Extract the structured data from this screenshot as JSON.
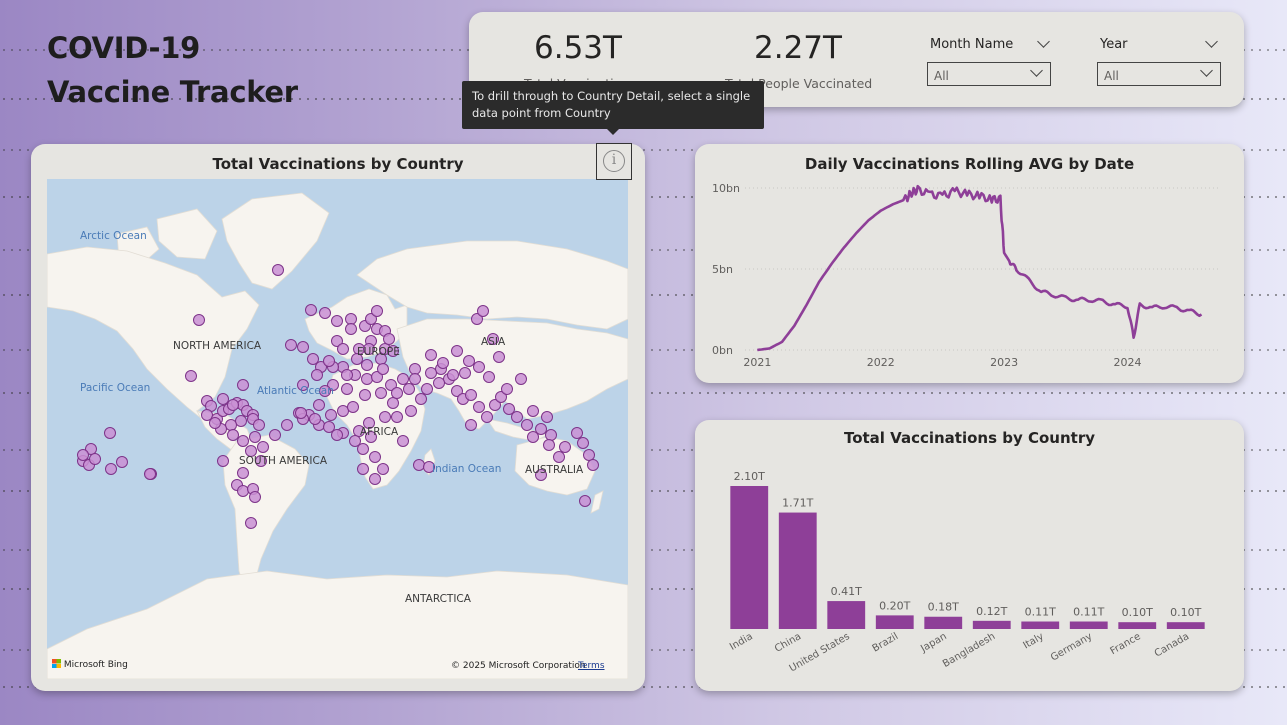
{
  "title_line1": "COVID-19",
  "title_line2": "Vaccine Tracker",
  "kpis": [
    {
      "value": "6.53T",
      "label": "Total Vaccinations"
    },
    {
      "value": "2.27T",
      "label": "Total People Vaccinated"
    }
  ],
  "slicers": [
    {
      "title": "Month Name",
      "selected": "All"
    },
    {
      "title": "Year",
      "selected": "All"
    }
  ],
  "tooltip": "To drill through to Country Detail, select a single data point from Country",
  "map_card": {
    "title": "Total Vaccinations by Country",
    "labels": {
      "arctic": "Arctic Ocean",
      "north_america": "NORTH AMERICA",
      "pacific": "Pacific Ocean",
      "atlantic": "Atlantic Ocean",
      "europe": "EUROPE",
      "asia": "ASIA",
      "africa": "AFRICA",
      "south_america": "SOUTH AMERICA",
      "indian": "Indian Ocean",
      "australia": "AUSTRALIA",
      "antarctica": "ANTARCTICA"
    },
    "footer_brand": "Microsoft Bing",
    "footer_copyright": "© 2025 Microsoft Corporation",
    "footer_terms": "Terms"
  },
  "line_card": {
    "title": "Daily Vaccinations Rolling AVG by Date"
  },
  "bar_card": {
    "title": "Total Vaccinations by Country"
  },
  "colors": {
    "accent": "#8e3f98",
    "bubble_fill": "#c98fd3",
    "bubble_stroke": "#7d3389",
    "card_bg": "#e6e5e1"
  },
  "chart_data": [
    {
      "type": "line",
      "title": "Daily Vaccinations Rolling AVG by Date",
      "x_ticks": [
        "2021",
        "2022",
        "2023",
        "2024"
      ],
      "y_ticks": [
        "0bn",
        "5bn",
        "10bn"
      ],
      "ylim": [
        0,
        10
      ],
      "unit": "bn",
      "x": [
        2021.0,
        2021.1,
        2021.2,
        2021.3,
        2021.4,
        2021.5,
        2021.6,
        2021.7,
        2021.8,
        2021.9,
        2022.0,
        2022.1,
        2022.2,
        2022.25,
        2022.3,
        2022.4,
        2022.5,
        2022.6,
        2022.7,
        2022.8,
        2022.9,
        2022.97,
        2023.0,
        2023.05,
        2023.1,
        2023.2,
        2023.3,
        2023.4,
        2023.5,
        2023.6,
        2023.7,
        2023.8,
        2023.9,
        2024.0,
        2024.05,
        2024.1,
        2024.2,
        2024.3,
        2024.4,
        2024.5,
        2024.6
      ],
      "y": [
        0.0,
        0.1,
        0.5,
        1.5,
        2.8,
        4.2,
        5.3,
        6.3,
        7.2,
        8.0,
        8.6,
        9.0,
        9.3,
        9.7,
        9.9,
        9.6,
        9.5,
        9.8,
        9.6,
        9.5,
        9.3,
        9.3,
        6.0,
        5.4,
        5.0,
        4.3,
        3.6,
        3.4,
        3.2,
        3.1,
        3.1,
        3.0,
        2.8,
        2.7,
        0.8,
        2.8,
        2.6,
        2.7,
        2.6,
        2.4,
        2.2
      ]
    },
    {
      "type": "bar",
      "title": "Total Vaccinations by Country",
      "categories": [
        "India",
        "China",
        "United States",
        "Brazil",
        "Japan",
        "Bangladesh",
        "Italy",
        "Germany",
        "France",
        "Canada"
      ],
      "values": [
        2.1,
        1.71,
        0.41,
        0.2,
        0.18,
        0.12,
        0.11,
        0.11,
        0.1,
        0.1
      ],
      "data_labels": [
        "2.10T",
        "1.71T",
        "0.41T",
        "0.20T",
        "0.18T",
        "0.12T",
        "0.11T",
        "0.11T",
        "0.10T",
        "0.10T"
      ],
      "unit": "T"
    }
  ]
}
